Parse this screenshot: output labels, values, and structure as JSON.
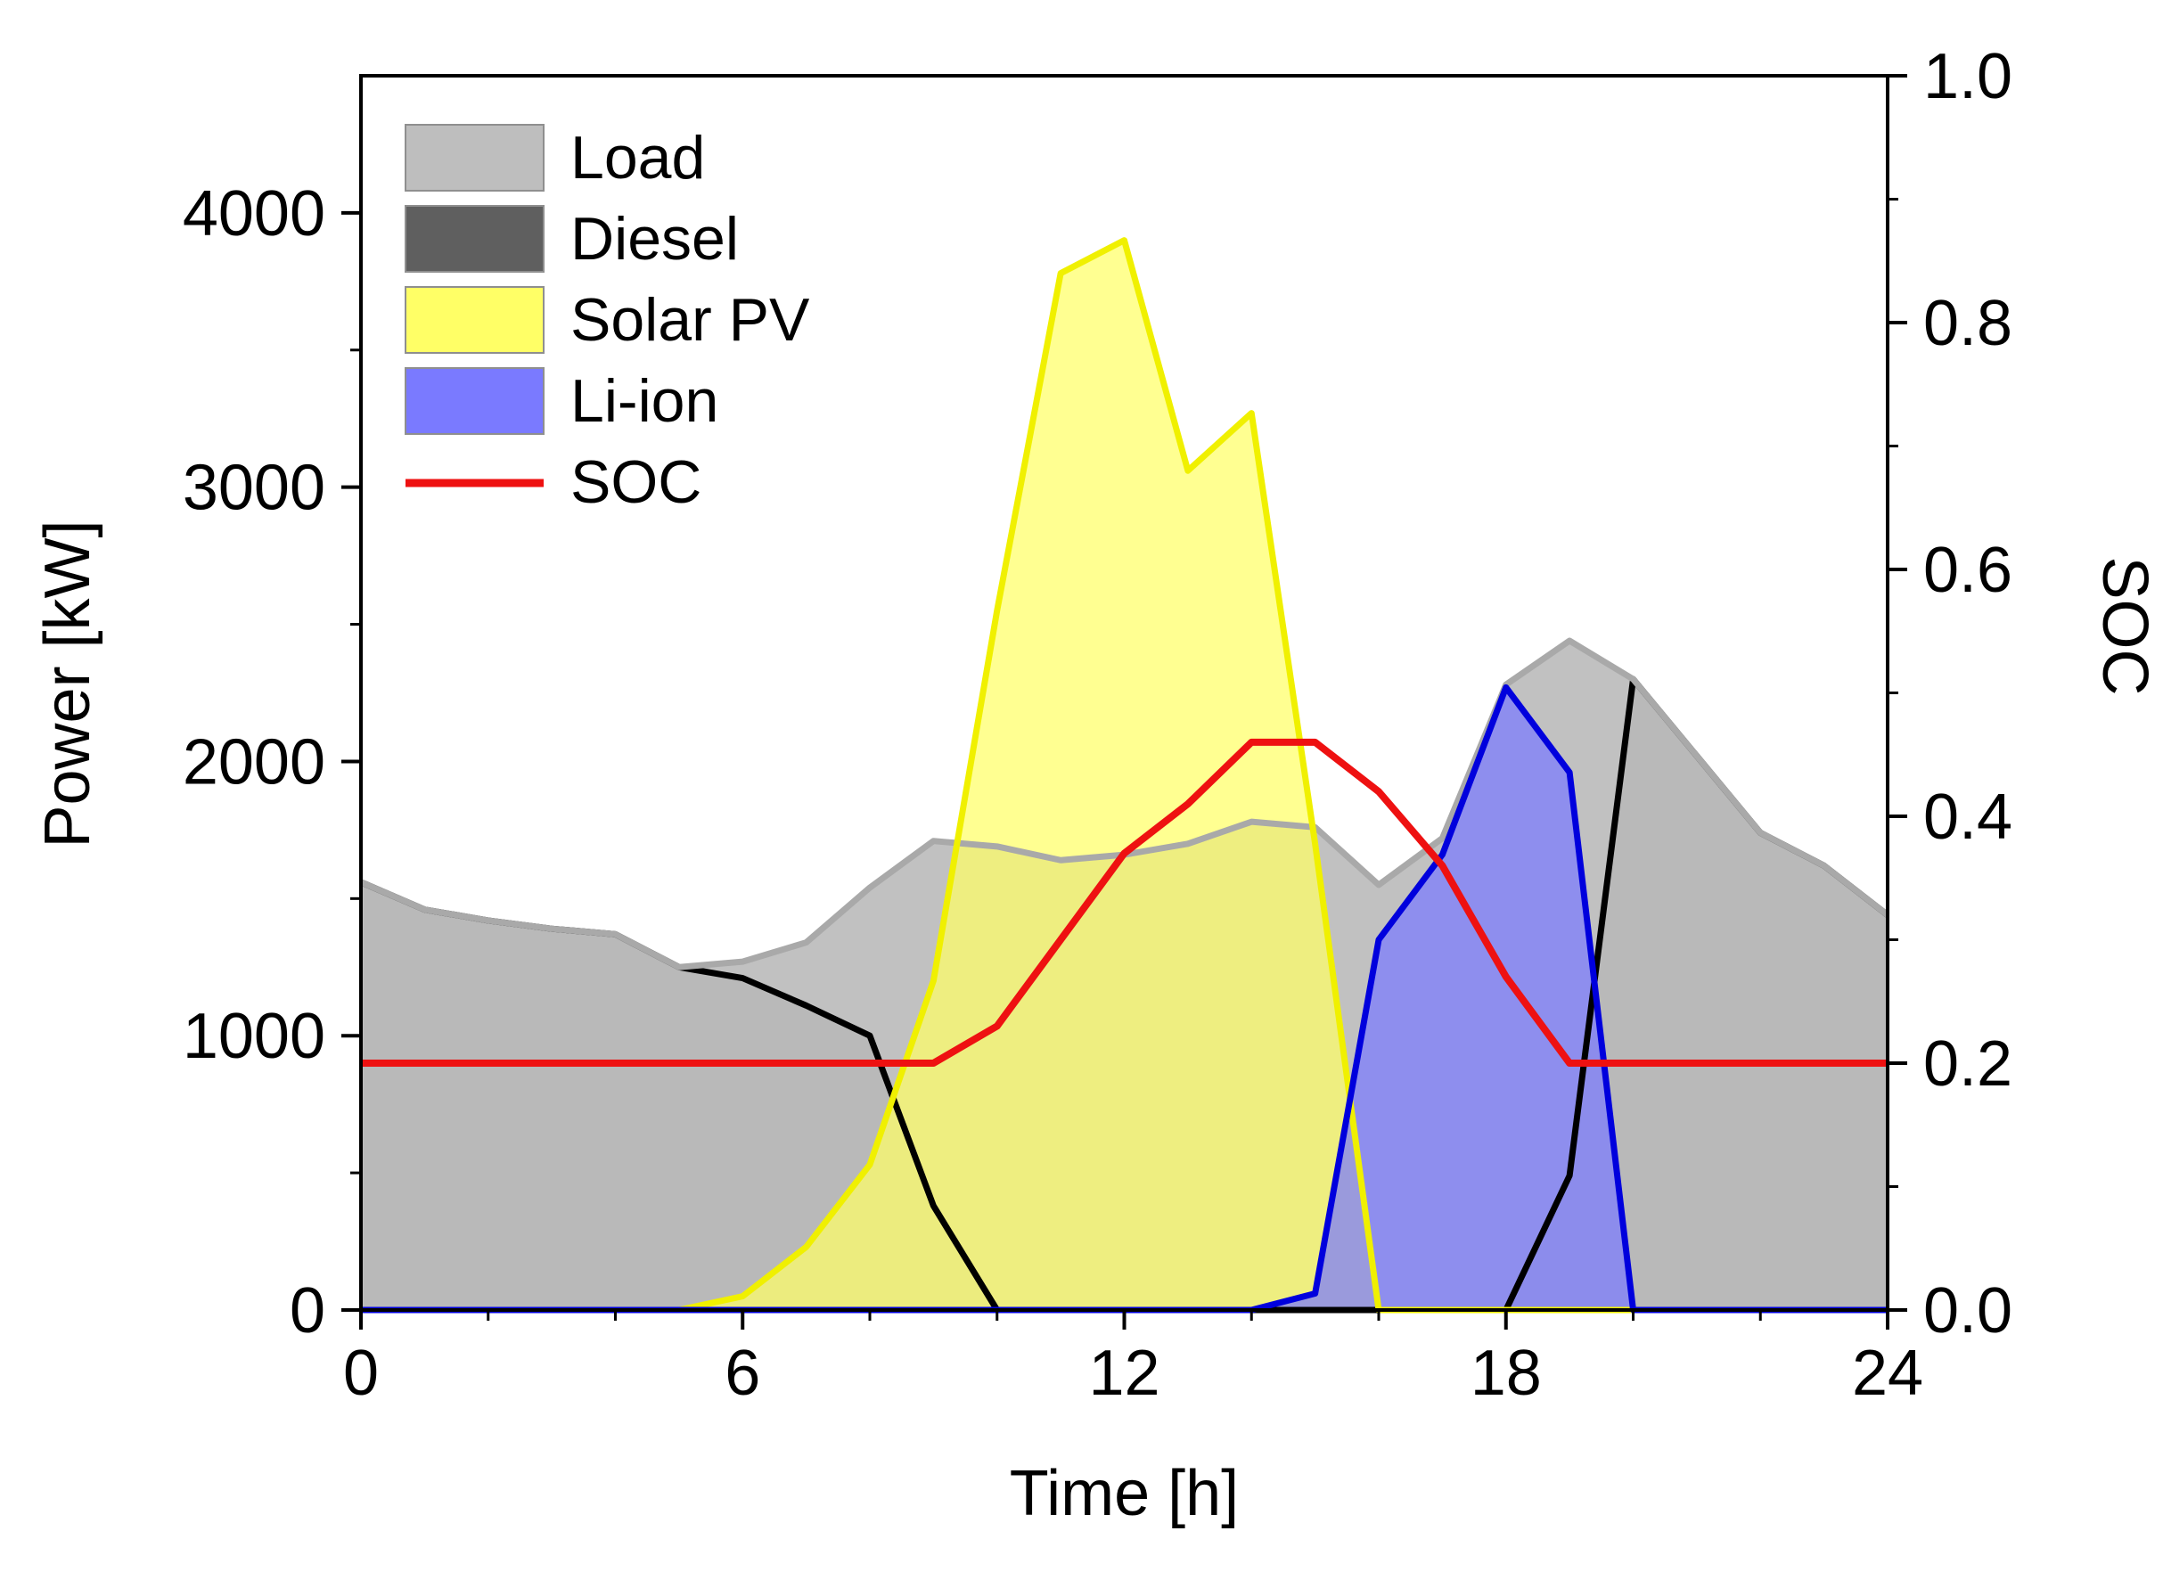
{
  "chart_data": {
    "type": "area",
    "xlabel": "Time [h]",
    "ylabel": "Power [kW]",
    "y2label": "SOC",
    "xlim": [
      0,
      24
    ],
    "ylim": [
      0,
      4500
    ],
    "y2lim": [
      0,
      1.0
    ],
    "xticks": [
      0,
      6,
      12,
      18,
      24
    ],
    "yticks": [
      0,
      1000,
      2000,
      3000,
      4000
    ],
    "y2ticks": [
      0.0,
      0.2,
      0.4,
      0.6,
      0.8,
      1.0
    ],
    "y2tick_labels": [
      "0.0",
      "0.2",
      "0.4",
      "0.6",
      "0.8",
      "1.0"
    ],
    "grid": false,
    "legend_position": "top-left",
    "x": [
      0,
      1,
      2,
      3,
      4,
      5,
      6,
      7,
      8,
      9,
      10,
      11,
      12,
      13,
      14,
      15,
      16,
      17,
      18,
      19,
      20,
      21,
      22,
      23,
      24
    ],
    "series": [
      {
        "name": "Load",
        "axis": "left",
        "kind": "area",
        "color": "#bebebe",
        "line_color": "#a9a9a9",
        "values": [
          1560,
          1460,
          1420,
          1390,
          1370,
          1250,
          1270,
          1340,
          1540,
          1710,
          1690,
          1640,
          1660,
          1700,
          1780,
          1760,
          1550,
          1720,
          2280,
          2440,
          2300,
          2020,
          1740,
          1620,
          1440
        ]
      },
      {
        "name": "Diesel",
        "axis": "left",
        "kind": "area",
        "color": "#5f5f5f",
        "line_color": "#000000",
        "values": [
          1560,
          1460,
          1420,
          1390,
          1370,
          1250,
          1210,
          1110,
          1000,
          380,
          0,
          0,
          0,
          0,
          0,
          0,
          0,
          0,
          0,
          490,
          2300,
          2020,
          1740,
          1620,
          1440
        ]
      },
      {
        "name": "Solar PV",
        "axis": "left",
        "kind": "area",
        "color": "#ffff66",
        "line_color": "#f0f000",
        "values": [
          0,
          0,
          0,
          0,
          0,
          0,
          50,
          230,
          530,
          1200,
          2550,
          3780,
          3900,
          3060,
          3270,
          1700,
          0,
          0,
          0,
          0,
          0,
          0,
          0,
          0,
          0
        ]
      },
      {
        "name": "Li-ion",
        "axis": "left",
        "kind": "area",
        "color": "#7a7aff",
        "line_color": "#0000dd",
        "values": [
          0,
          0,
          0,
          0,
          0,
          0,
          0,
          0,
          0,
          0,
          0,
          0,
          0,
          0,
          0,
          60,
          1350,
          1660,
          2270,
          1960,
          0,
          0,
          0,
          0,
          0
        ]
      },
      {
        "name": "SOC",
        "axis": "right",
        "kind": "line",
        "color": "#ee1111",
        "values": [
          0.2,
          0.2,
          0.2,
          0.2,
          0.2,
          0.2,
          0.2,
          0.2,
          0.2,
          0.2,
          0.23,
          0.3,
          0.37,
          0.41,
          0.46,
          0.46,
          0.42,
          0.36,
          0.27,
          0.2,
          0.2,
          0.2,
          0.2,
          0.2,
          0.2
        ]
      }
    ]
  }
}
